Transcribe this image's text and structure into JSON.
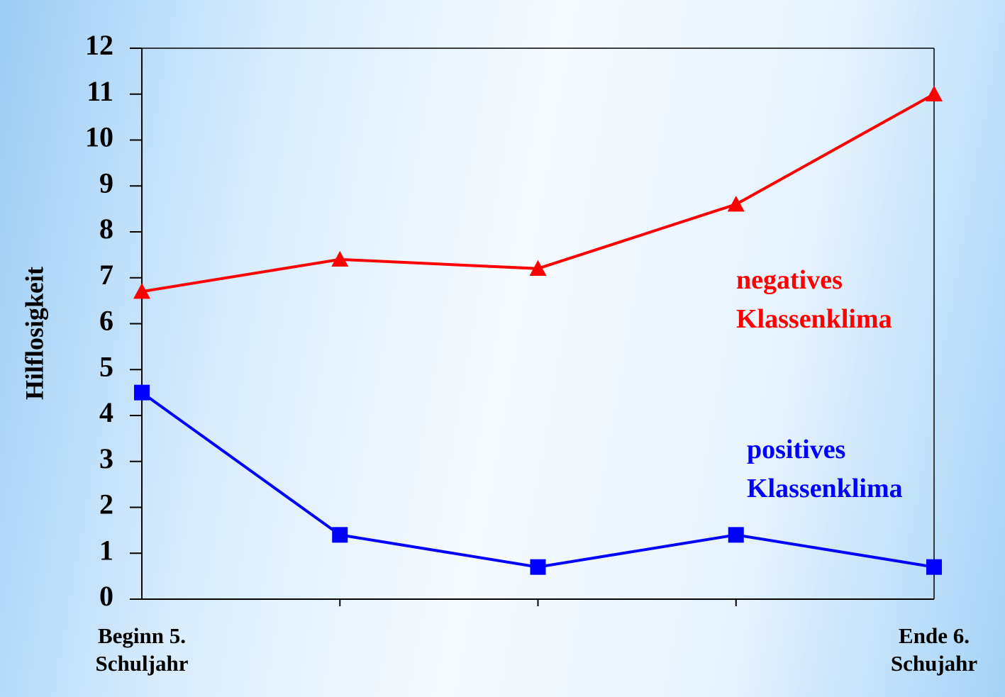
{
  "chart_data": {
    "type": "line",
    "y_label": "Hilflosigkeit",
    "categories": [
      "Beginn 5. Schuljahr",
      null,
      null,
      null,
      "Ende 6. Schujahr"
    ],
    "series": [
      {
        "name": "negatives Klassenklima",
        "color": "#ff0000",
        "marker": "triangle",
        "values": [
          6.7,
          7.4,
          7.2,
          8.6,
          11.0
        ]
      },
      {
        "name": "positives Klassenklima",
        "color": "#0000ff",
        "marker": "square",
        "values": [
          4.5,
          1.4,
          0.7,
          1.4,
          0.7
        ]
      }
    ],
    "ylim": [
      0,
      12
    ],
    "yticks": [
      0,
      1,
      2,
      3,
      4,
      5,
      6,
      7,
      8,
      9,
      10,
      11,
      12
    ]
  }
}
